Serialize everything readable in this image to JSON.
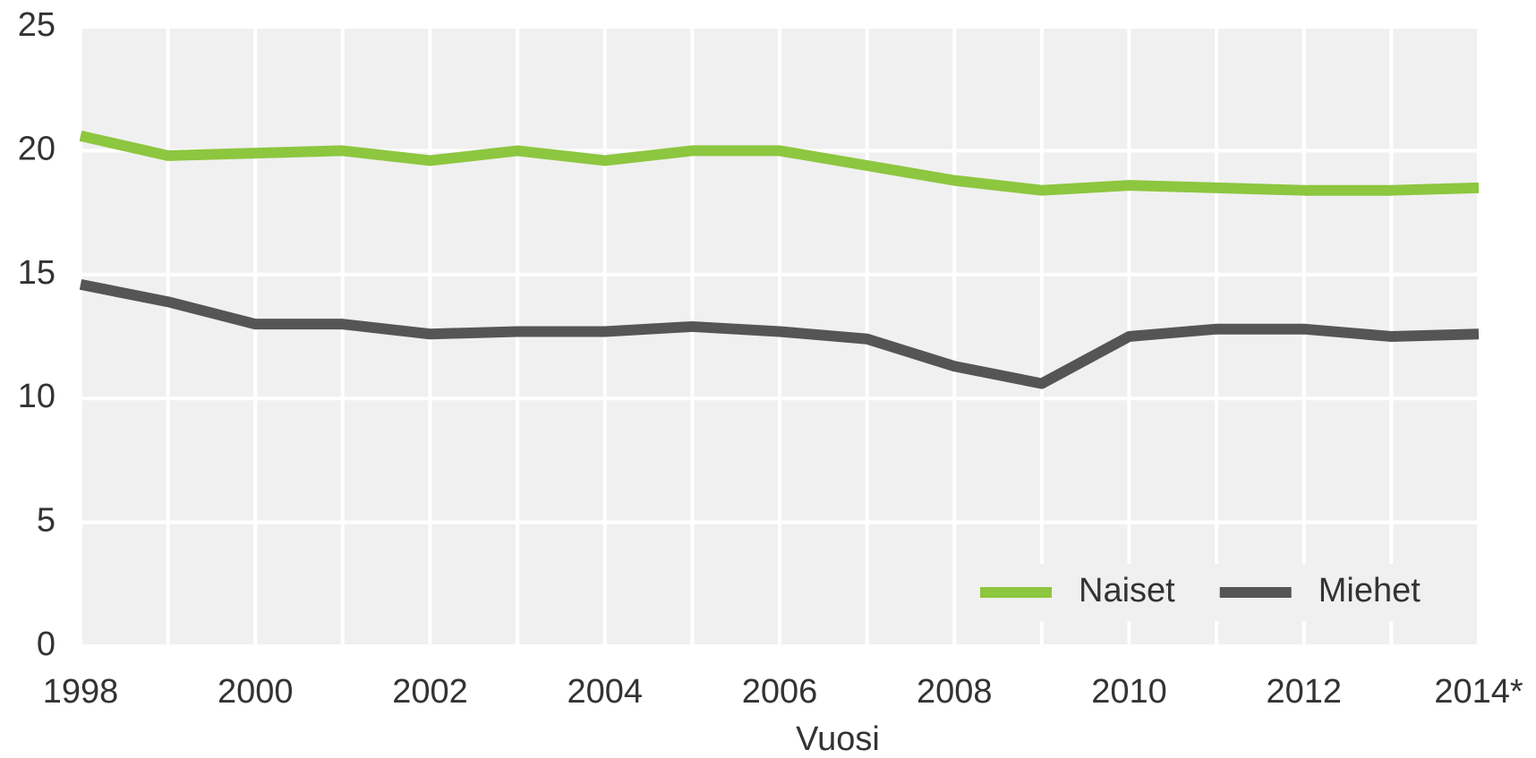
{
  "chart_data": {
    "type": "line",
    "x_label": "Vuosi",
    "categories": [
      "1998",
      null,
      "2000",
      null,
      "2002",
      null,
      "2004",
      null,
      "2006",
      null,
      "2008",
      null,
      "2010",
      null,
      "2012",
      null,
      "2014*"
    ],
    "series": [
      {
        "name": "Naiset",
        "color": "#8dc63f",
        "values": [
          20.6,
          19.8,
          19.9,
          20.0,
          19.6,
          20.0,
          19.6,
          20.0,
          20.0,
          19.4,
          18.8,
          18.4,
          18.6,
          18.5,
          18.4,
          18.4,
          18.5
        ]
      },
      {
        "name": "Miehet",
        "color": "#555555",
        "values": [
          14.6,
          13.9,
          13.0,
          13.0,
          12.6,
          12.7,
          12.7,
          12.9,
          12.7,
          12.4,
          11.3,
          10.6,
          12.5,
          12.8,
          12.8,
          12.5,
          12.6
        ]
      }
    ],
    "ylim": [
      0,
      25
    ],
    "yticks": [
      0,
      5,
      10,
      15,
      20,
      25
    ],
    "grid": true,
    "legend": "lower right"
  }
}
